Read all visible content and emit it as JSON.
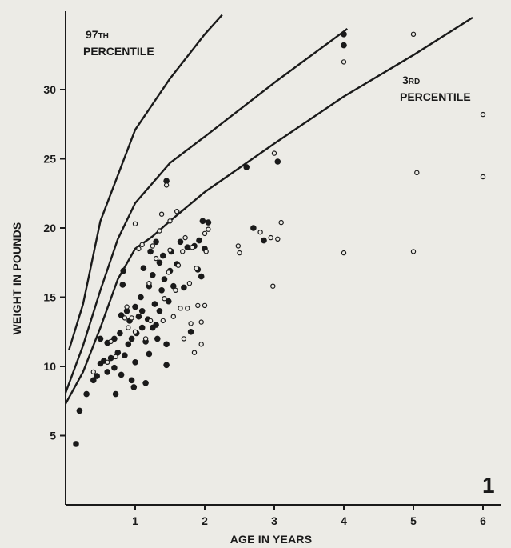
{
  "chart_data": {
    "type": "scatter",
    "title": "",
    "xlabel": "AGE IN YEARS",
    "ylabel": "WEIGHT IN POUNDS",
    "xlim": [
      0,
      6.1
    ],
    "ylim": [
      0,
      35.5
    ],
    "x_ticks": [
      {
        "value": 1,
        "label": "1"
      },
      {
        "value": 2,
        "label": "2"
      },
      {
        "value": 3,
        "label": "3"
      },
      {
        "value": 4,
        "label": "4"
      },
      {
        "value": 5,
        "label": "5"
      },
      {
        "value": 6,
        "label": "6"
      }
    ],
    "y_ticks": [
      {
        "value": 5,
        "label": "5"
      },
      {
        "value": 10,
        "label": "10"
      },
      {
        "value": 15,
        "label": "15"
      },
      {
        "value": 20,
        "label": "20"
      },
      {
        "value": 25,
        "label": "25"
      },
      {
        "value": 30,
        "label": "30"
      }
    ],
    "figure_number": "1",
    "curves": [
      {
        "label": "97TH PERCENTILE",
        "label_main": "97",
        "label_suffix": "TH",
        "label_line2": "PERCENTILE",
        "points": [
          [
            0.05,
            11.2
          ],
          [
            0.25,
            14.5
          ],
          [
            0.5,
            20.5
          ],
          [
            1.0,
            27.1
          ],
          [
            1.5,
            30.8
          ],
          [
            2.0,
            34.0
          ],
          [
            2.25,
            35.4
          ]
        ]
      },
      {
        "label": "",
        "points": [
          [
            0.0,
            8.1
          ],
          [
            0.25,
            11.5
          ],
          [
            0.5,
            15.5
          ],
          [
            0.75,
            19.2
          ],
          [
            1.0,
            21.8
          ],
          [
            1.5,
            24.7
          ],
          [
            2.0,
            26.6
          ],
          [
            3.0,
            30.5
          ],
          [
            4.0,
            34.2
          ],
          [
            4.05,
            34.4
          ]
        ]
      },
      {
        "label": "3RD PERCENTILE",
        "label_main": "3",
        "label_suffix": "RD",
        "label_line2": "PERCENTILE",
        "points": [
          [
            0.0,
            7.3
          ],
          [
            0.25,
            9.6
          ],
          [
            0.5,
            12.8
          ],
          [
            0.75,
            16.3
          ],
          [
            1.0,
            18.5
          ],
          [
            1.25,
            19.4
          ],
          [
            1.5,
            20.5
          ],
          [
            2.0,
            22.6
          ],
          [
            3.0,
            26.1
          ],
          [
            4.0,
            29.5
          ],
          [
            5.0,
            32.5
          ],
          [
            5.85,
            35.2
          ]
        ]
      }
    ],
    "series": [
      {
        "marker": "filled",
        "points": [
          [
            0.15,
            4.4
          ],
          [
            0.2,
            6.8
          ],
          [
            0.3,
            8.0
          ],
          [
            0.4,
            9.0
          ],
          [
            0.45,
            9.3
          ],
          [
            0.5,
            10.2
          ],
          [
            0.5,
            12.0
          ],
          [
            0.55,
            10.4
          ],
          [
            0.6,
            9.6
          ],
          [
            0.6,
            11.7
          ],
          [
            0.65,
            10.6
          ],
          [
            0.7,
            12.0
          ],
          [
            0.7,
            9.9
          ],
          [
            0.72,
            8.0
          ],
          [
            0.75,
            11.0
          ],
          [
            0.78,
            12.4
          ],
          [
            0.8,
            9.4
          ],
          [
            0.8,
            13.7
          ],
          [
            0.82,
            15.9
          ],
          [
            0.83,
            16.9
          ],
          [
            0.85,
            10.8
          ],
          [
            0.88,
            14.0
          ],
          [
            0.9,
            11.6
          ],
          [
            0.92,
            13.3
          ],
          [
            0.95,
            9.0
          ],
          [
            0.95,
            12.0
          ],
          [
            0.98,
            8.5
          ],
          [
            1.0,
            14.3
          ],
          [
            1.0,
            10.3
          ],
          [
            1.02,
            12.4
          ],
          [
            1.05,
            13.6
          ],
          [
            1.08,
            15.0
          ],
          [
            1.1,
            12.8
          ],
          [
            1.1,
            14.0
          ],
          [
            1.12,
            17.1
          ],
          [
            1.15,
            8.8
          ],
          [
            1.15,
            11.8
          ],
          [
            1.18,
            13.4
          ],
          [
            1.2,
            10.9
          ],
          [
            1.2,
            15.8
          ],
          [
            1.22,
            18.3
          ],
          [
            1.25,
            12.8
          ],
          [
            1.25,
            16.6
          ],
          [
            1.28,
            14.5
          ],
          [
            1.3,
            13.0
          ],
          [
            1.3,
            19.0
          ],
          [
            1.32,
            12.0
          ],
          [
            1.35,
            14.0
          ],
          [
            1.35,
            17.5
          ],
          [
            1.38,
            15.5
          ],
          [
            1.4,
            18.0
          ],
          [
            1.42,
            16.3
          ],
          [
            1.45,
            23.4
          ],
          [
            1.45,
            11.6
          ],
          [
            1.45,
            10.1
          ],
          [
            1.48,
            14.7
          ],
          [
            1.5,
            16.9
          ],
          [
            1.52,
            18.3
          ],
          [
            1.55,
            15.8
          ],
          [
            1.6,
            17.4
          ],
          [
            1.65,
            19.0
          ],
          [
            1.7,
            15.7
          ],
          [
            1.75,
            18.6
          ],
          [
            1.8,
            12.5
          ],
          [
            1.85,
            18.7
          ],
          [
            1.9,
            17.0
          ],
          [
            1.92,
            19.1
          ],
          [
            1.95,
            16.5
          ],
          [
            1.97,
            20.5
          ],
          [
            2.0,
            18.5
          ],
          [
            2.05,
            20.4
          ],
          [
            2.6,
            24.4
          ],
          [
            2.7,
            20.0
          ],
          [
            2.85,
            19.1
          ],
          [
            3.05,
            24.8
          ],
          [
            4.0,
            34.0
          ],
          [
            4.0,
            33.2
          ]
        ]
      },
      {
        "marker": "open",
        "points": [
          [
            0.4,
            9.6
          ],
          [
            0.6,
            10.3
          ],
          [
            0.65,
            11.8
          ],
          [
            0.72,
            10.7
          ],
          [
            0.85,
            13.5
          ],
          [
            0.88,
            14.3
          ],
          [
            0.9,
            12.8
          ],
          [
            0.95,
            13.5
          ],
          [
            1.0,
            12.5
          ],
          [
            1.0,
            20.3
          ],
          [
            1.05,
            18.5
          ],
          [
            1.1,
            18.8
          ],
          [
            1.15,
            12.0
          ],
          [
            1.2,
            16.0
          ],
          [
            1.22,
            13.3
          ],
          [
            1.25,
            18.7
          ],
          [
            1.3,
            17.8
          ],
          [
            1.35,
            19.8
          ],
          [
            1.38,
            21.0
          ],
          [
            1.4,
            13.3
          ],
          [
            1.42,
            14.9
          ],
          [
            1.45,
            23.1
          ],
          [
            1.48,
            16.8
          ],
          [
            1.5,
            20.5
          ],
          [
            1.5,
            18.4
          ],
          [
            1.55,
            13.6
          ],
          [
            1.58,
            15.5
          ],
          [
            1.6,
            21.2
          ],
          [
            1.62,
            17.3
          ],
          [
            1.65,
            14.2
          ],
          [
            1.68,
            18.3
          ],
          [
            1.7,
            12.0
          ],
          [
            1.72,
            19.3
          ],
          [
            1.75,
            14.2
          ],
          [
            1.78,
            16.0
          ],
          [
            1.8,
            13.1
          ],
          [
            1.82,
            18.6
          ],
          [
            1.85,
            11.0
          ],
          [
            1.88,
            17.1
          ],
          [
            1.9,
            14.4
          ],
          [
            1.95,
            13.2
          ],
          [
            1.95,
            11.6
          ],
          [
            2.0,
            14.4
          ],
          [
            2.0,
            19.6
          ],
          [
            2.02,
            18.3
          ],
          [
            2.05,
            19.9
          ],
          [
            2.48,
            18.7
          ],
          [
            2.5,
            18.2
          ],
          [
            2.8,
            19.7
          ],
          [
            2.95,
            19.3
          ],
          [
            2.98,
            15.8
          ],
          [
            3.0,
            25.4
          ],
          [
            3.05,
            19.2
          ],
          [
            3.1,
            20.4
          ],
          [
            4.0,
            32.0
          ],
          [
            4.0,
            18.2
          ],
          [
            5.0,
            34.0
          ],
          [
            5.0,
            18.3
          ],
          [
            5.05,
            24.0
          ],
          [
            6.0,
            28.2
          ],
          [
            6.0,
            23.7
          ]
        ]
      }
    ],
    "grid": false,
    "legend": "none"
  },
  "colors": {
    "background": "#ecebe6",
    "ink": "#1a1a1a"
  }
}
